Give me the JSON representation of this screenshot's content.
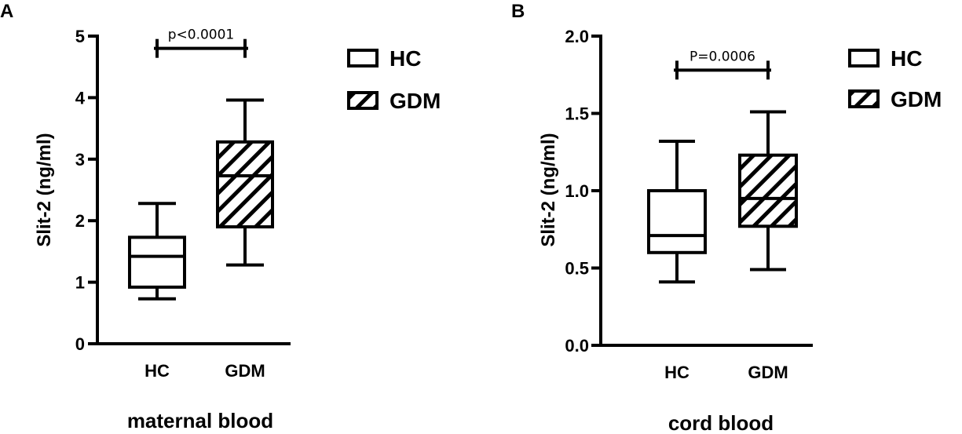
{
  "chart_data": [
    {
      "type": "box",
      "panel_label": "A",
      "title": "",
      "xlabel": "maternal blood",
      "ylabel": "Slit-2 (ng/ml)",
      "ylim": [
        0,
        5
      ],
      "yticks": [
        "0",
        "1",
        "2",
        "3",
        "4",
        "5"
      ],
      "categories": [
        "HC",
        "GDM"
      ],
      "boxes": [
        {
          "category": "HC",
          "min": 0.73,
          "q1": 0.92,
          "median": 1.42,
          "q3": 1.73,
          "max": 2.28,
          "pattern": "none"
        },
        {
          "category": "GDM",
          "min": 1.28,
          "q1": 1.9,
          "median": 2.73,
          "q3": 3.28,
          "max": 3.96,
          "pattern": "hatch"
        }
      ],
      "significance": {
        "text": "p<0.0001",
        "y": 4.8,
        "from": "HC",
        "to": "GDM"
      },
      "legend": {
        "position": "right",
        "entries": [
          "HC",
          "GDM"
        ]
      }
    },
    {
      "type": "box",
      "panel_label": "B",
      "title": "",
      "xlabel": "cord blood",
      "ylabel": "Slit-2 (ng/ml)",
      "ylim": [
        0,
        2
      ],
      "yticks": [
        "0.0",
        "0.5",
        "1.0",
        "1.5",
        "2.0"
      ],
      "categories": [
        "HC",
        "GDM"
      ],
      "boxes": [
        {
          "category": "HC",
          "min": 0.41,
          "q1": 0.6,
          "median": 0.71,
          "q3": 1.0,
          "max": 1.32,
          "pattern": "none"
        },
        {
          "category": "GDM",
          "min": 0.49,
          "q1": 0.77,
          "median": 0.95,
          "q3": 1.23,
          "max": 1.51,
          "pattern": "hatch"
        }
      ],
      "significance": {
        "text": "P=0.0006",
        "y": 1.78,
        "from": "HC",
        "to": "GDM"
      },
      "legend": {
        "position": "right",
        "entries": [
          "HC",
          "GDM"
        ]
      }
    }
  ]
}
